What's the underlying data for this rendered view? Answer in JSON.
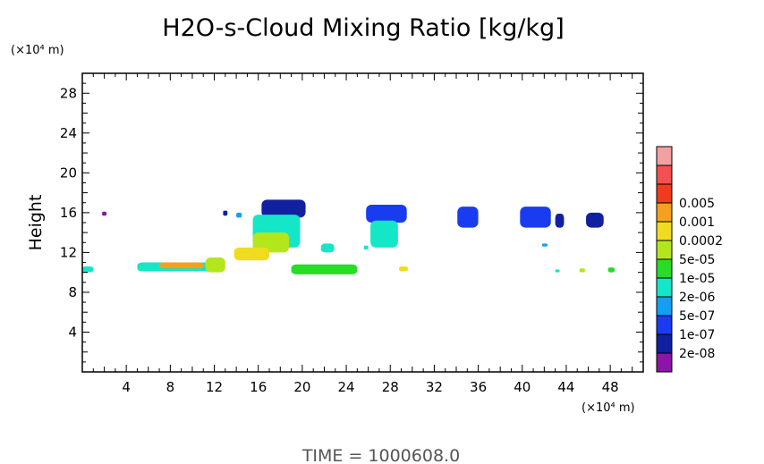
{
  "chart_data": {
    "type": "heatmap",
    "title": "H2O-s-Cloud Mixing Ratio [kg/kg]",
    "xlabel": "",
    "ylabel": "Height",
    "x_unit": "(×10⁴ m)",
    "y_unit": "(×10⁴ m)",
    "xlim": [
      0,
      51
    ],
    "ylim": [
      0,
      30
    ],
    "x_ticks": [
      4,
      8,
      12,
      16,
      20,
      24,
      28,
      32,
      36,
      40,
      44,
      48
    ],
    "y_ticks": [
      4,
      8,
      12,
      16,
      20,
      24,
      28
    ],
    "legend": {
      "placement": "right",
      "levels": [
        "2e-08",
        "1e-07",
        "5e-07",
        "2e-06",
        "1e-05",
        "5e-05",
        "0.0002",
        "0.001",
        "0.005"
      ],
      "colors": [
        "#8c14a8",
        "#1020a0",
        "#1a3cf0",
        "#14a0f0",
        "#14e6c8",
        "#28dc28",
        "#b4e61e",
        "#f0dc1e",
        "#f5a01e",
        "#f03c1e",
        "#f55050",
        "#f5a0a0"
      ]
    },
    "regions": [
      {
        "name": "small-left-dot",
        "x": [
          1.8,
          2.2
        ],
        "y": [
          15.7,
          16.1
        ],
        "level": 0
      },
      {
        "name": "layer-left-edge",
        "x": [
          0.0,
          1.0
        ],
        "y": [
          10.0,
          10.6
        ],
        "level": 4
      },
      {
        "name": "layer-8km-shelf",
        "x": [
          5.0,
          12.3
        ],
        "y": [
          10.1,
          11.0
        ],
        "level": 4
      },
      {
        "name": "layer-8km-core",
        "x": [
          7.0,
          11.0
        ],
        "y": [
          10.4,
          11.0
        ],
        "level": 8
      },
      {
        "name": "layer-12km-blob",
        "x": [
          11.2,
          13.0
        ],
        "y": [
          10.0,
          11.5
        ],
        "level": 6
      },
      {
        "name": "tower-18-top",
        "x": [
          16.3,
          20.3
        ],
        "y": [
          15.5,
          17.3
        ],
        "level": 1
      },
      {
        "name": "tower-18-body",
        "x": [
          15.5,
          19.8
        ],
        "y": [
          12.5,
          15.8
        ],
        "level": 4
      },
      {
        "name": "tower-18-core",
        "x": [
          15.5,
          18.8
        ],
        "y": [
          12.0,
          14.0
        ],
        "level": 6
      },
      {
        "name": "tower-18-foot",
        "x": [
          13.8,
          17.0
        ],
        "y": [
          11.2,
          12.5
        ],
        "level": 7
      },
      {
        "name": "layer-20-24",
        "x": [
          19.0,
          25.0
        ],
        "y": [
          9.8,
          10.8
        ],
        "level": 5
      },
      {
        "name": "tower-28-top",
        "x": [
          25.8,
          29.5
        ],
        "y": [
          15.0,
          16.8
        ],
        "level": 2
      },
      {
        "name": "tower-28-body",
        "x": [
          26.2,
          28.7
        ],
        "y": [
          12.5,
          15.2
        ],
        "level": 4
      },
      {
        "name": "small-29-low",
        "x": [
          28.8,
          29.6
        ],
        "y": [
          10.1,
          10.6
        ],
        "level": 7
      },
      {
        "name": "cloud-34",
        "x": [
          34.1,
          36.0
        ],
        "y": [
          14.5,
          16.6
        ],
        "level": 2
      },
      {
        "name": "cloud-40",
        "x": [
          39.8,
          42.6
        ],
        "y": [
          14.5,
          16.6
        ],
        "level": 2
      },
      {
        "name": "cloud-44",
        "x": [
          43.0,
          43.8
        ],
        "y": [
          14.5,
          15.9
        ],
        "level": 1
      },
      {
        "name": "cloud-47",
        "x": [
          45.8,
          47.4
        ],
        "y": [
          14.5,
          16.0
        ],
        "level": 1
      },
      {
        "name": "dot-42",
        "x": [
          41.8,
          42.3
        ],
        "y": [
          12.6,
          12.9
        ],
        "level": 3
      },
      {
        "name": "dot-43-low",
        "x": [
          43.0,
          43.4
        ],
        "y": [
          10.0,
          10.3
        ],
        "level": 4
      },
      {
        "name": "dot-45-low",
        "x": [
          45.2,
          45.7
        ],
        "y": [
          10.0,
          10.4
        ],
        "level": 6
      },
      {
        "name": "dot-48-low",
        "x": [
          47.8,
          48.4
        ],
        "y": [
          10.0,
          10.5
        ],
        "level": 5
      },
      {
        "name": "dot-13",
        "x": [
          12.8,
          13.2
        ],
        "y": [
          15.7,
          16.2
        ],
        "level": 1
      },
      {
        "name": "dot-14",
        "x": [
          14.0,
          14.5
        ],
        "y": [
          15.5,
          16.0
        ],
        "level": 3
      },
      {
        "name": "dot-22",
        "x": [
          21.7,
          22.9
        ],
        "y": [
          12.0,
          12.9
        ],
        "level": 4
      },
      {
        "name": "dot-26",
        "x": [
          25.6,
          26.0
        ],
        "y": [
          12.3,
          12.7
        ],
        "level": 4
      }
    ]
  },
  "footer": {
    "time_text": "TIME = 1000608.0"
  }
}
